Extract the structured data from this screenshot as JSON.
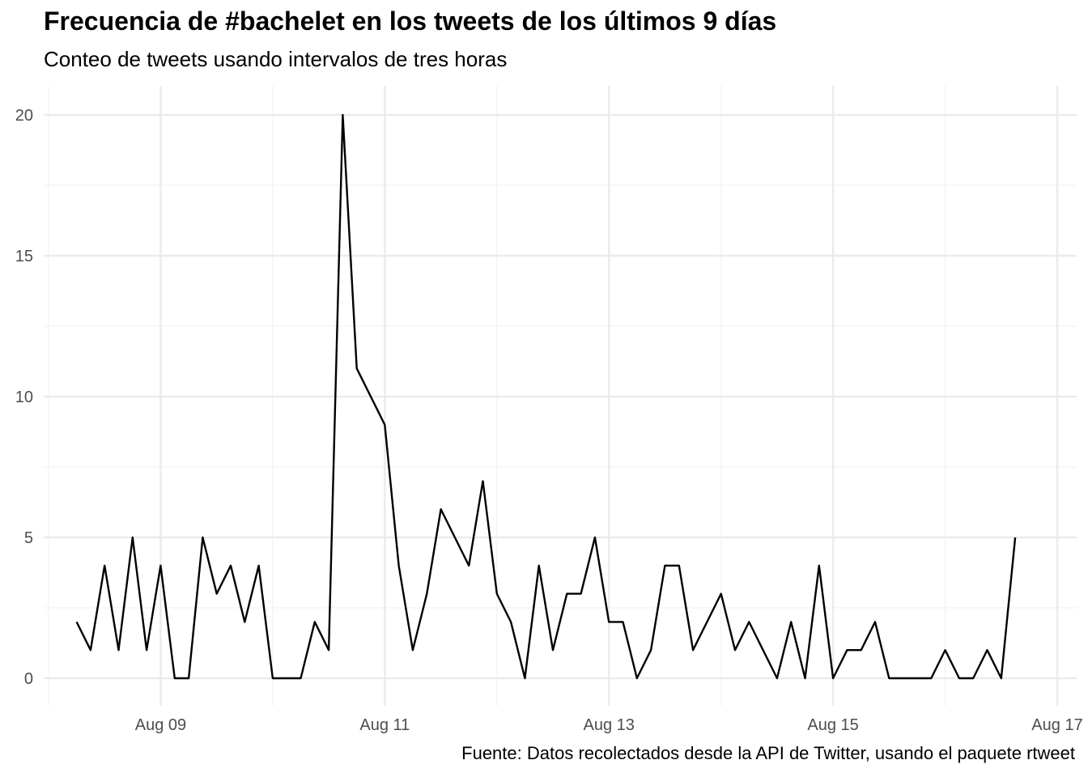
{
  "chart_data": {
    "type": "line",
    "title": "Frecuencia de #bachelet en los tweets de los últimos 9 días",
    "subtitle": "Conteo de tweets usando intervalos de tres horas",
    "caption": "Fuente: Datos recolectados desde la API de Twitter, usando el paquete rtweet",
    "xlabel": "",
    "ylabel": "",
    "x_scale": "datetime",
    "xlim": [
      "2018-08-08T00:00",
      "2018-08-17T00:00"
    ],
    "ylim": [
      0,
      20
    ],
    "x_ticks": [
      {
        "date": "2018-08-09",
        "label": "Aug 09"
      },
      {
        "date": "2018-08-11",
        "label": "Aug 11"
      },
      {
        "date": "2018-08-13",
        "label": "Aug 13"
      },
      {
        "date": "2018-08-15",
        "label": "Aug 15"
      },
      {
        "date": "2018-08-17",
        "label": "Aug 17"
      }
    ],
    "y_ticks": [
      0,
      5,
      10,
      15,
      20
    ],
    "grid": true,
    "line_color": "#000000",
    "series": [
      {
        "x": [
          "2018-08-08T06:00",
          "2018-08-08T09:00",
          "2018-08-08T12:00",
          "2018-08-08T15:00",
          "2018-08-08T18:00",
          "2018-08-08T21:00",
          "2018-08-09T00:00",
          "2018-08-09T03:00",
          "2018-08-09T06:00",
          "2018-08-09T09:00",
          "2018-08-09T12:00",
          "2018-08-09T15:00",
          "2018-08-09T18:00",
          "2018-08-09T21:00",
          "2018-08-10T00:00",
          "2018-08-10T03:00",
          "2018-08-10T06:00",
          "2018-08-10T09:00",
          "2018-08-10T12:00",
          "2018-08-10T15:00",
          "2018-08-10T18:00",
          "2018-08-10T21:00",
          "2018-08-11T00:00",
          "2018-08-11T03:00",
          "2018-08-11T06:00",
          "2018-08-11T09:00",
          "2018-08-11T12:00",
          "2018-08-11T15:00",
          "2018-08-11T18:00",
          "2018-08-11T21:00",
          "2018-08-12T00:00",
          "2018-08-12T03:00",
          "2018-08-12T06:00",
          "2018-08-12T09:00",
          "2018-08-12T12:00",
          "2018-08-12T15:00",
          "2018-08-12T18:00",
          "2018-08-12T21:00",
          "2018-08-13T00:00",
          "2018-08-13T03:00",
          "2018-08-13T06:00",
          "2018-08-13T09:00",
          "2018-08-13T12:00",
          "2018-08-13T15:00",
          "2018-08-13T18:00",
          "2018-08-13T21:00",
          "2018-08-14T00:00",
          "2018-08-14T03:00",
          "2018-08-14T06:00",
          "2018-08-14T09:00",
          "2018-08-14T12:00",
          "2018-08-14T15:00",
          "2018-08-14T18:00",
          "2018-08-14T21:00",
          "2018-08-15T00:00",
          "2018-08-15T03:00",
          "2018-08-15T06:00",
          "2018-08-15T09:00",
          "2018-08-15T12:00",
          "2018-08-15T15:00",
          "2018-08-15T18:00",
          "2018-08-15T21:00",
          "2018-08-16T00:00",
          "2018-08-16T03:00",
          "2018-08-16T06:00",
          "2018-08-16T09:00",
          "2018-08-16T12:00",
          "2018-08-16T15:00"
        ],
        "values": [
          2,
          1,
          4,
          1,
          5,
          1,
          4,
          0,
          0,
          5,
          3,
          4,
          2,
          4,
          0,
          0,
          0,
          2,
          1,
          20,
          11,
          10,
          9,
          4,
          1,
          3,
          6,
          5,
          4,
          7,
          3,
          2,
          0,
          4,
          1,
          3,
          3,
          5,
          2,
          2,
          0,
          1,
          4,
          4,
          1,
          2,
          3,
          1,
          2,
          1,
          0,
          2,
          0,
          4,
          0,
          1,
          1,
          2,
          0,
          0,
          0,
          0,
          1,
          0,
          0,
          1,
          0,
          5
        ]
      }
    ]
  }
}
